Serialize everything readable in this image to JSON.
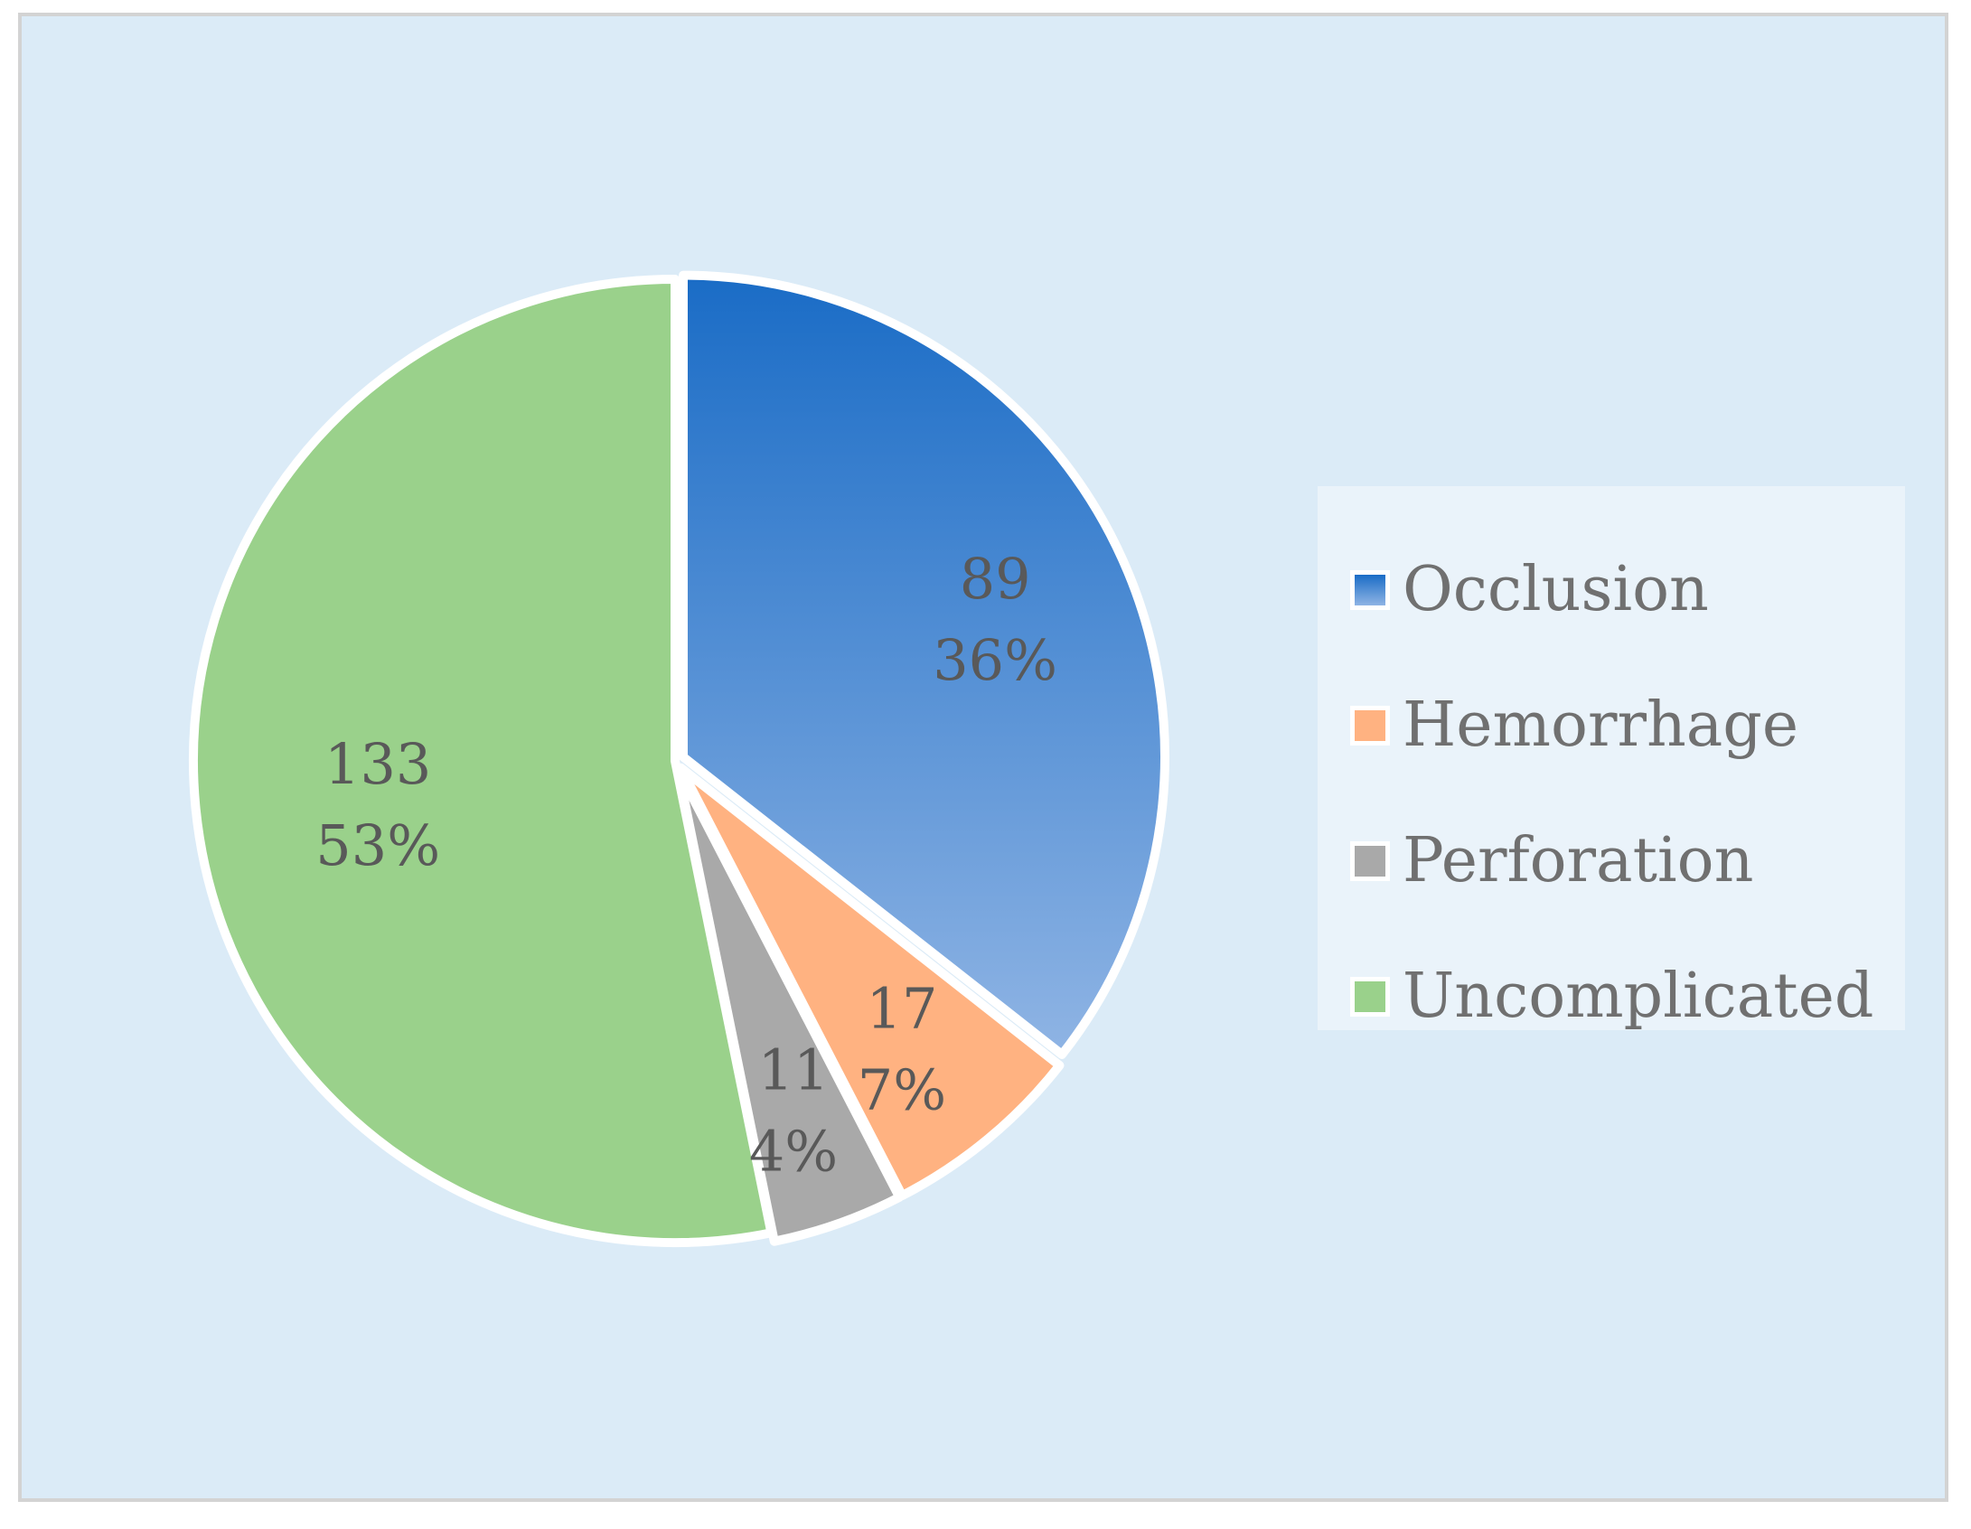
{
  "chart_data": {
    "type": "pie",
    "categories": [
      "Occlusion",
      "Hemorrhage",
      "Perforation",
      "Uncomplicated"
    ],
    "values": [
      89,
      17,
      11,
      133
    ],
    "percent_labels": [
      "36%",
      "7%",
      "4%",
      "53%"
    ],
    "colors": [
      "#1f6fc8",
      "#ffb281",
      "#a9a9a9",
      "#9ad18b"
    ],
    "legend_position": "right",
    "title": ""
  }
}
